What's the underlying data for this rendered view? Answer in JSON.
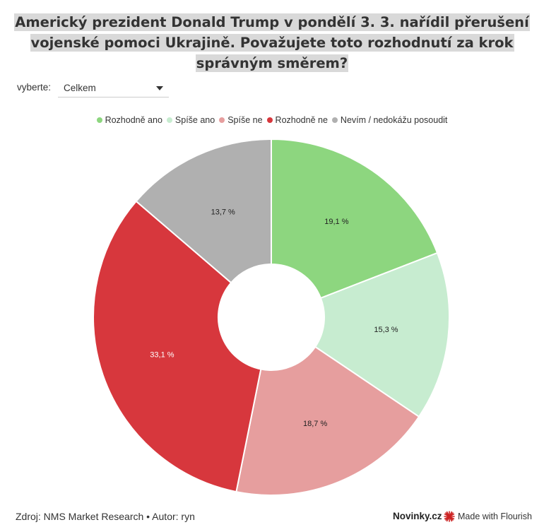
{
  "header": {
    "title": "Americký prezident Donald Trump v pondělí 3. 3. nařídil přerušení vojenské pomoci Ukrajině. Považujete toto rozhodnutí za krok správným směrem?"
  },
  "controls": {
    "label": "vyberte:",
    "selected": "Celkem"
  },
  "chart_data": {
    "type": "pie",
    "donut": true,
    "categories": [
      "Rozhodně ano",
      "Spíše ano",
      "Spíše ne",
      "Rozhodně ne",
      "Nevím / nedokážu posoudit"
    ],
    "values": [
      19.1,
      15.3,
      18.7,
      33.1,
      13.7
    ],
    "data_labels": [
      "19,1 %",
      "15,3 %",
      "18,7 %",
      "33,1 %",
      "13,7 %"
    ],
    "colors": [
      "#8dd67f",
      "#c7ecd0",
      "#e69e9e",
      "#d7373d",
      "#b0b0b0"
    ],
    "label_colors": [
      "#222222",
      "#222222",
      "#222222",
      "#ffffff",
      "#222222"
    ],
    "legend_position": "top"
  },
  "footer": {
    "source": "Zdroj: NMS Market Research • Autor: ryn",
    "brand": "Novinky.cz",
    "flourish": "Made with Flourish"
  }
}
